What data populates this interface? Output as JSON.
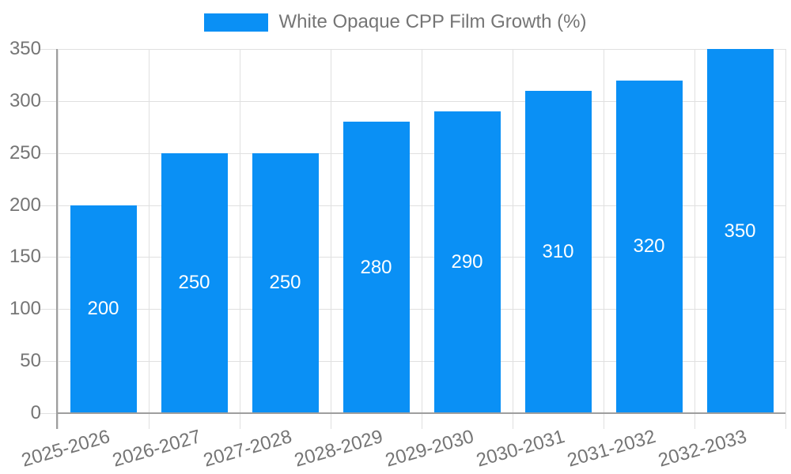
{
  "chart_data": {
    "type": "bar",
    "title": "White Opaque CPP Film Growth (%)",
    "series": [
      {
        "name": "White Opaque CPP Film Growth (%)",
        "values": [
          200,
          250,
          250,
          280,
          290,
          310,
          320,
          350
        ]
      }
    ],
    "categories": [
      "2025-2026",
      "2026-2027",
      "2027-2028",
      "2028-2029",
      "2029-2030",
      "2030-2031",
      "2031-2032",
      "2032-2033"
    ],
    "bar_value_labels": [
      "200",
      "250",
      "250",
      "280",
      "290",
      "310",
      "320",
      "350"
    ],
    "ytick_labels": [
      "0",
      "50",
      "100",
      "150",
      "200",
      "250",
      "300",
      "350"
    ],
    "ylim": [
      0,
      350
    ],
    "ytick_step": 50,
    "xlabel": "",
    "ylabel": "",
    "grid": "both",
    "legend_position": "top-center"
  },
  "colors": {
    "bar": "#0a90f5",
    "grid": "#e0e0e0",
    "axis": "#9e9e9e",
    "tick_text": "#757575",
    "legend_text": "#757575",
    "bar_value_text": "#ffffff",
    "background": "#ffffff"
  }
}
